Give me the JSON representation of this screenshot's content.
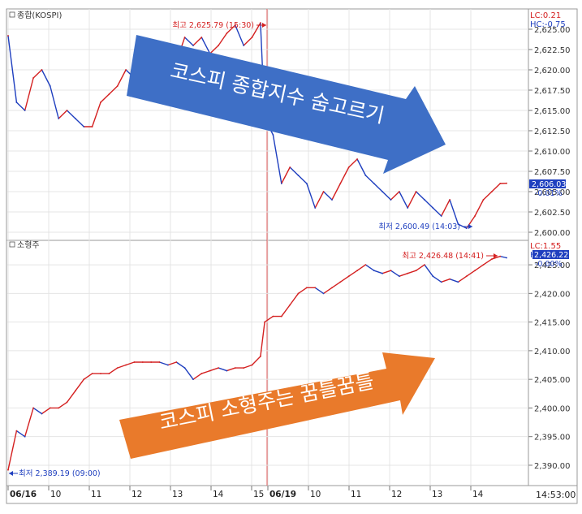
{
  "chart_data": [
    {
      "type": "line",
      "panel_label": "종합(KOSPI)",
      "y_range": [
        2600.0,
        2625.0
      ],
      "y_ticks": [
        "2,600.00",
        "2,602.50",
        "2,605.00",
        "2,607.50",
        "2,610.00",
        "2,612.50",
        "2,615.00",
        "2,617.50",
        "2,620.00",
        "2,622.50",
        "2,625.00"
      ],
      "indicators": {
        "lc": "LC:0.21",
        "hc": "HC:-0.75",
        "last_value": "2,606.03",
        "last_change": "-0.01%"
      },
      "high_annotation": "최고 2,625.79 (15:30)",
      "low_annotation": "최저 2,600.49 (14:03)",
      "x": [
        0,
        2,
        4,
        6,
        8,
        10,
        12,
        14,
        16,
        18,
        20,
        22,
        24,
        26,
        28,
        30,
        32,
        34,
        36,
        38,
        40,
        42,
        44,
        46,
        48,
        50,
        52,
        54,
        56,
        58,
        60,
        61,
        63,
        65,
        67,
        69,
        71,
        73,
        75,
        77,
        79,
        81,
        83,
        85,
        87,
        89,
        91,
        93,
        95,
        97,
        99,
        101,
        103,
        105,
        107,
        109,
        111,
        113,
        115,
        117,
        118.5
      ],
      "values": [
        2624.2,
        2616.0,
        2615.0,
        2619.0,
        2620.0,
        2618.0,
        2614.0,
        2615.0,
        2614.0,
        2613.0,
        2613.0,
        2616.0,
        2617.0,
        2618.0,
        2620.0,
        2619.0,
        2624.0,
        2622.0,
        2621.0,
        2622.0,
        2621.0,
        2624.0,
        2623.0,
        2624.0,
        2622.0,
        2623.0,
        2624.5,
        2625.5,
        2623.0,
        2624.0,
        2625.79,
        2614.0,
        2612.0,
        2606.0,
        2608.0,
        2607.0,
        2606.0,
        2603.0,
        2605.0,
        2604.0,
        2606.0,
        2608.0,
        2609.0,
        2607.0,
        2606.0,
        2605.0,
        2604.0,
        2605.0,
        2603.0,
        2605.0,
        2604.0,
        2603.0,
        2602.0,
        2604.0,
        2601.0,
        2600.49,
        2602.0,
        2604.0,
        2605.0,
        2606.0,
        2606.03
      ]
    },
    {
      "type": "line",
      "panel_label": "소형주",
      "y_range": [
        2389.0,
        2427.0
      ],
      "y_ticks": [
        "2,390.00",
        "2,395.00",
        "2,400.00",
        "2,405.00",
        "2,410.00",
        "2,415.00",
        "2,420.00",
        "2,425.00"
      ],
      "indicators": {
        "lc": "LC:1.55",
        "hc": "HC",
        "last_value": "2,426.22",
        "last_change": "-0.00%"
      },
      "high_annotation": "최고 2,426.48 (14:41)",
      "low_annotation": "최저 2,389.19 (09:00)",
      "x": [
        0,
        2,
        4,
        6,
        8,
        10,
        12,
        14,
        16,
        18,
        20,
        22,
        24,
        26,
        28,
        30,
        32,
        34,
        36,
        38,
        40,
        42,
        44,
        46,
        48,
        50,
        52,
        54,
        56,
        58,
        60,
        61,
        63,
        65,
        67,
        69,
        71,
        73,
        75,
        77,
        79,
        81,
        83,
        85,
        87,
        89,
        91,
        93,
        95,
        97,
        99,
        101,
        103,
        105,
        107,
        109,
        111,
        113,
        115,
        117,
        118.5
      ],
      "values": [
        2389.19,
        2396.0,
        2395.0,
        2400.0,
        2399.0,
        2400.0,
        2400.0,
        2401.0,
        2403.0,
        2405.0,
        2406.0,
        2406.0,
        2406.0,
        2407.0,
        2407.5,
        2408.0,
        2408.0,
        2408.0,
        2408.0,
        2407.5,
        2408.0,
        2407.0,
        2405.0,
        2406.0,
        2406.5,
        2407.0,
        2406.5,
        2407.0,
        2407.0,
        2407.5,
        2409.0,
        2415.0,
        2416.0,
        2416.0,
        2418.0,
        2420.0,
        2421.0,
        2421.0,
        2420.0,
        2421.0,
        2422.0,
        2423.0,
        2424.0,
        2425.0,
        2424.0,
        2423.5,
        2424.0,
        2423.0,
        2423.5,
        2424.0,
        2425.0,
        2423.0,
        2422.0,
        2422.5,
        2422.0,
        2423.0,
        2424.0,
        2425.0,
        2426.0,
        2426.48,
        2426.22
      ]
    }
  ],
  "x_axis": {
    "ticks": [
      "06/16",
      "10",
      "11",
      "12",
      "13",
      "14",
      "15",
      "06/19",
      "10",
      "11",
      "12",
      "13",
      "14"
    ],
    "time": "14:53:00"
  },
  "annotations": {
    "blue_arrow": "코스피 종합지수 숨고르기",
    "orange_arrow": "코스피 소형주는 꿈틀꿈틀"
  },
  "colors": {
    "up": "#d42020",
    "down": "#1f3fbf",
    "blue_arrow": "#3e6fc6",
    "orange_arrow": "#e97a2b",
    "indicator_box": "#1f3fbf",
    "session_divider": "#e05a5a"
  }
}
